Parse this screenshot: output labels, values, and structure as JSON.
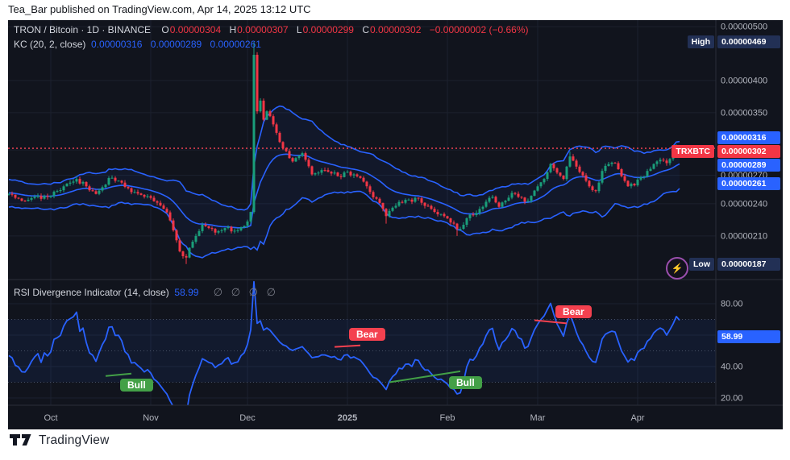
{
  "header": {
    "attribution": "Tea_Bar published on TradingView.com, Apr 14, 2025 13:12 UTC"
  },
  "footer": {
    "brand": "TradingView"
  },
  "icons": {
    "boost": "⚡"
  },
  "main_pane": {
    "legend": {
      "symbol": "TRON / Bitcoin · 1D · BINANCE",
      "ohlc": [
        {
          "key": "O",
          "value": "0.00000304"
        },
        {
          "key": "H",
          "value": "0.00000307"
        },
        {
          "key": "L",
          "value": "0.00000299"
        },
        {
          "key": "C",
          "value": "0.00000302"
        }
      ],
      "change": "−0.00000002 (−0.66%)"
    },
    "kc_legend": {
      "name": "KC (20, 2, close)",
      "values": [
        "0.00000316",
        "0.00000289",
        "0.00000261"
      ]
    }
  },
  "price_scale": {
    "ticks": [
      {
        "label": "0.00000500",
        "value": 500
      },
      {
        "label": "0.00000400",
        "value": 400
      },
      {
        "label": "0.00000350",
        "value": 350
      },
      {
        "label": "0.00000270",
        "value": 270
      },
      {
        "label": "0.00000240",
        "value": 240
      },
      {
        "label": "0.00000210",
        "value": 210
      }
    ],
    "grid_levels": [
      500,
      400,
      350,
      300,
      270,
      240,
      210
    ],
    "badges": {
      "high": {
        "label": "High",
        "value_label": "0.00000469",
        "value": 469
      },
      "kc_upper": {
        "value_label": "0.00000316",
        "value": 316
      },
      "last": {
        "label": "TRXBTC",
        "value_label": "0.00000302",
        "value": 302
      },
      "kc_mid": {
        "value_label": "0.00000289",
        "value": 289
      },
      "kc_lower": {
        "value_label": "0.00000261",
        "value": 261
      },
      "low": {
        "label": "Low",
        "value_label": "0.00000187",
        "value": 187
      }
    }
  },
  "rsi_pane": {
    "legend": {
      "name": "RSI Divergence Indicator (14, close)",
      "value": "58.99",
      "empty_values": "∅ ∅ ∅ ∅"
    },
    "badge": {
      "value_label": "58.99",
      "value": 58.99
    },
    "scale_ticks": [
      {
        "label": "80.00",
        "value": 80
      },
      {
        "label": "60.00",
        "value": 60
      },
      {
        "label": "40.00",
        "value": 40
      },
      {
        "label": "20.00",
        "value": 20
      }
    ],
    "grid_levels": [
      80,
      60,
      40,
      20
    ],
    "bands": {
      "upper": 70,
      "middle": 50,
      "lower": 30
    }
  },
  "time_axis": {
    "ticks": [
      {
        "label": "Oct",
        "bar": 13
      },
      {
        "label": "Nov",
        "bar": 44
      },
      {
        "label": "Dec",
        "bar": 74
      },
      {
        "label": "2025",
        "bar": 105,
        "strong": true
      },
      {
        "label": "Feb",
        "bar": 136
      },
      {
        "label": "Mar",
        "bar": 164
      },
      {
        "label": "Apr",
        "bar": 195
      }
    ]
  },
  "chart_data": {
    "type": "candlestick",
    "title": "TRON / Bitcoin · 1D · BINANCE",
    "symbol": "TRXBTC",
    "timeframe": "1D",
    "exchange": "BINANCE",
    "log_scale": true,
    "price_unit": "BTC, values shown ×1e-8",
    "last_ohlc": {
      "open": 304,
      "high": 307,
      "low": 299,
      "close": 302
    },
    "change": "−0.00000002",
    "change_pct": "−0.66%",
    "session_high_marker": 469,
    "session_low_marker": 187,
    "close_anchors": [
      [
        -16,
        252
      ],
      [
        0,
        250
      ],
      [
        2,
        246
      ],
      [
        4,
        243
      ],
      [
        6,
        244
      ],
      [
        8,
        247
      ],
      [
        10,
        245
      ],
      [
        13,
        248
      ],
      [
        15,
        253
      ],
      [
        17,
        258
      ],
      [
        19,
        262
      ],
      [
        21,
        266
      ],
      [
        24,
        258
      ],
      [
        27,
        250
      ],
      [
        29,
        257
      ],
      [
        31,
        267
      ],
      [
        33,
        264
      ],
      [
        35,
        262
      ],
      [
        37,
        256
      ],
      [
        39,
        252
      ],
      [
        41,
        249
      ],
      [
        44,
        246
      ],
      [
        46,
        241
      ],
      [
        48,
        235
      ],
      [
        50,
        224
      ],
      [
        51,
        215
      ],
      [
        53,
        197
      ],
      [
        55,
        192
      ],
      [
        56,
        200
      ],
      [
        58,
        210
      ],
      [
        60,
        220
      ],
      [
        62,
        217
      ],
      [
        64,
        213
      ],
      [
        66,
        215
      ],
      [
        68,
        218
      ],
      [
        69,
        214
      ],
      [
        71,
        215
      ],
      [
        73,
        219
      ],
      [
        74,
        223
      ],
      [
        75,
        232
      ],
      [
        76,
        445
      ],
      [
        77,
        352
      ],
      [
        78,
        368
      ],
      [
        79,
        340
      ],
      [
        80,
        352
      ],
      [
        81,
        345
      ],
      [
        83,
        322
      ],
      [
        85,
        302
      ],
      [
        87,
        290
      ],
      [
        88,
        286
      ],
      [
        90,
        293
      ],
      [
        91,
        296
      ],
      [
        92,
        288
      ],
      [
        94,
        271
      ],
      [
        96,
        273
      ],
      [
        97,
        276
      ],
      [
        99,
        274
      ],
      [
        100,
        272
      ],
      [
        102,
        269
      ],
      [
        103,
        268
      ],
      [
        105,
        274
      ],
      [
        107,
        271
      ],
      [
        108,
        269
      ],
      [
        110,
        263
      ],
      [
        111,
        258
      ],
      [
        112,
        252
      ],
      [
        114,
        245
      ],
      [
        116,
        235
      ],
      [
        117,
        228
      ],
      [
        118,
        233
      ],
      [
        120,
        238
      ],
      [
        122,
        241
      ],
      [
        123,
        244
      ],
      [
        125,
        242
      ],
      [
        126,
        246
      ],
      [
        128,
        241
      ],
      [
        129,
        238
      ],
      [
        131,
        235
      ],
      [
        132,
        232
      ],
      [
        134,
        230
      ],
      [
        135,
        228
      ],
      [
        137,
        222
      ],
      [
        139,
        216
      ],
      [
        141,
        220
      ],
      [
        142,
        226
      ],
      [
        144,
        229
      ],
      [
        145,
        231
      ],
      [
        147,
        237
      ],
      [
        148,
        242
      ],
      [
        150,
        247
      ],
      [
        152,
        237
      ],
      [
        154,
        243
      ],
      [
        156,
        251
      ],
      [
        158,
        247
      ],
      [
        160,
        242
      ],
      [
        162,
        248
      ],
      [
        164,
        258
      ],
      [
        166,
        266
      ],
      [
        168,
        283
      ],
      [
        169,
        278
      ],
      [
        170,
        273
      ],
      [
        172,
        266
      ],
      [
        173,
        280
      ],
      [
        174,
        292
      ],
      [
        175,
        287
      ],
      [
        176,
        280
      ],
      [
        178,
        270
      ],
      [
        180,
        258
      ],
      [
        182,
        253
      ],
      [
        183,
        262
      ],
      [
        184,
        275
      ],
      [
        186,
        283
      ],
      [
        188,
        284
      ],
      [
        189,
        277
      ],
      [
        190,
        269
      ],
      [
        192,
        258
      ],
      [
        194,
        259
      ],
      [
        196,
        268
      ],
      [
        198,
        275
      ],
      [
        200,
        283
      ],
      [
        202,
        288
      ],
      [
        204,
        284
      ],
      [
        205,
        289
      ],
      [
        206,
        295
      ],
      [
        207,
        304
      ],
      [
        208,
        302
      ]
    ],
    "wick_overrides": [
      {
        "bar": 55,
        "low": 187
      },
      {
        "bar": 76,
        "high": 469
      },
      {
        "bar": 117,
        "low": 221
      },
      {
        "bar": 139,
        "low": 210
      },
      {
        "bar": 174,
        "high": 298
      },
      {
        "bar": 207,
        "high": 307
      },
      {
        "bar": 208,
        "low": 299
      }
    ],
    "keltner": {
      "length": 20,
      "multiplier": 2,
      "source": "close",
      "upper": 316,
      "middle": 289,
      "lower": 261
    },
    "rsi": {
      "length": 14,
      "source": "close",
      "last": 58.99,
      "bands": [
        70,
        50,
        30
      ],
      "visible_range": [
        20,
        80
      ]
    },
    "divergences": [
      {
        "type": "bull",
        "label": "Bull",
        "bar1": 30,
        "rsi1": 34,
        "bar2": 38,
        "rsi2": 35.5
      },
      {
        "type": "bear",
        "label": "Bear",
        "bar1": 101,
        "rsi1": 52.5,
        "bar2": 109,
        "rsi2": 53.5
      },
      {
        "type": "bull",
        "label": "Bull",
        "bar1": 118,
        "rsi1": 30,
        "bar2": 140,
        "rsi2": 37
      },
      {
        "type": "bear",
        "label": "Bear",
        "bar1": 163,
        "rsi1": 69.5,
        "bar2": 173,
        "rsi2": 67.5
      }
    ],
    "noise": {
      "seed": 9,
      "amp": 0.01,
      "wick": 0.006
    }
  },
  "colors": {
    "background": "#11141d",
    "grid": "#1c212e",
    "separator": "#2a2e39",
    "up": "#1a9e7a",
    "down": "#f23645",
    "accent_blue": "#2962ff",
    "current_price": "#fd4456",
    "bull_green": "#43a047",
    "bear_red": "#f4414f",
    "navy_badge": "#223055",
    "scale_text": "#b2b5be",
    "text_primary": "#d1d4dc",
    "text_muted": "#787b86",
    "band_dotted": "#454f63"
  }
}
